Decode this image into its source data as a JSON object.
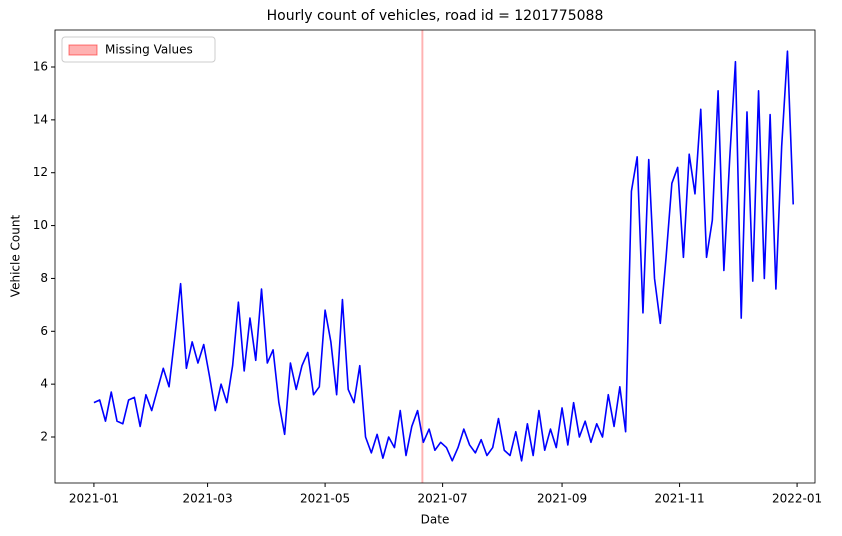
{
  "chart_data": {
    "type": "line",
    "title": "Hourly count of vehicles, road id = 1201775088",
    "x_label": "Date",
    "y_label": "Vehicle Count",
    "x": [
      0,
      3,
      6,
      9,
      12,
      15,
      18,
      21,
      24,
      27,
      30,
      33,
      36,
      39,
      42,
      45,
      48,
      51,
      54,
      57,
      60,
      63,
      66,
      69,
      72,
      75,
      78,
      81,
      84,
      87,
      90,
      93,
      96,
      99,
      102,
      105,
      108,
      111,
      114,
      117,
      120,
      123,
      126,
      129,
      132,
      135,
      138,
      141,
      144,
      147,
      150,
      153,
      156,
      159,
      162,
      165,
      168,
      171,
      174,
      177,
      180,
      183,
      186,
      189,
      192,
      195,
      198,
      201,
      204,
      207,
      210,
      213,
      216,
      219,
      222,
      225,
      228,
      231,
      234,
      237,
      240,
      243,
      246,
      249,
      252,
      255,
      258,
      261,
      264,
      267,
      270,
      273,
      276,
      279,
      282,
      285,
      288,
      291,
      294,
      297,
      300,
      303,
      306,
      309,
      312,
      315,
      318,
      321,
      324,
      327,
      330,
      333,
      336,
      339,
      342,
      345,
      348,
      351,
      354,
      357,
      360,
      363
    ],
    "values": [
      3.3,
      3.4,
      2.6,
      3.7,
      2.6,
      2.5,
      3.4,
      3.5,
      2.4,
      3.6,
      3.0,
      3.8,
      4.6,
      3.9,
      5.8,
      7.8,
      4.6,
      5.6,
      4.8,
      5.5,
      4.3,
      3.0,
      4.0,
      3.3,
      4.7,
      7.1,
      4.5,
      6.5,
      4.9,
      7.6,
      4.8,
      5.3,
      3.3,
      2.1,
      4.8,
      3.8,
      4.7,
      5.2,
      3.6,
      3.9,
      6.8,
      5.6,
      3.6,
      7.2,
      3.8,
      3.3,
      4.7,
      2.0,
      1.4,
      2.1,
      1.2,
      2.0,
      1.6,
      3.0,
      1.3,
      2.4,
      3.0,
      1.8,
      2.3,
      1.5,
      1.8,
      1.6,
      1.1,
      1.6,
      2.3,
      1.7,
      1.4,
      1.9,
      1.3,
      1.6,
      2.7,
      1.5,
      1.3,
      2.2,
      1.1,
      2.5,
      1.3,
      3.0,
      1.5,
      2.3,
      1.6,
      3.1,
      1.7,
      3.3,
      2.0,
      2.6,
      1.8,
      2.5,
      2.0,
      3.6,
      2.4,
      3.9,
      2.2,
      11.3,
      12.6,
      6.7,
      12.5,
      8.0,
      6.3,
      8.8,
      11.6,
      12.2,
      8.8,
      12.7,
      11.2,
      14.4,
      8.8,
      10.2,
      15.1,
      8.3,
      12.5,
      16.2,
      6.5,
      14.3,
      7.9,
      15.1,
      8.0,
      14.2,
      7.6,
      13.0,
      16.6,
      10.8
    ],
    "color": "#0000ff",
    "missing": {
      "name": "Missing Values",
      "color": "#ff0000",
      "x": [
        170,
        171
      ]
    },
    "legend": "upper left",
    "xlim": [
      -20.2,
      374.3
    ],
    "xticks": [
      {
        "value": 0,
        "label": "2021-01"
      },
      {
        "value": 59,
        "label": "2021-03"
      },
      {
        "value": 120,
        "label": "2021-05"
      },
      {
        "value": 181,
        "label": "2021-07"
      },
      {
        "value": 243,
        "label": "2021-09"
      },
      {
        "value": 304,
        "label": "2021-11"
      },
      {
        "value": 365,
        "label": "2022-01"
      }
    ],
    "ylim": [
      0.26,
      17.4
    ],
    "yticks": [
      2,
      4,
      6,
      8,
      10,
      12,
      14,
      16
    ]
  }
}
